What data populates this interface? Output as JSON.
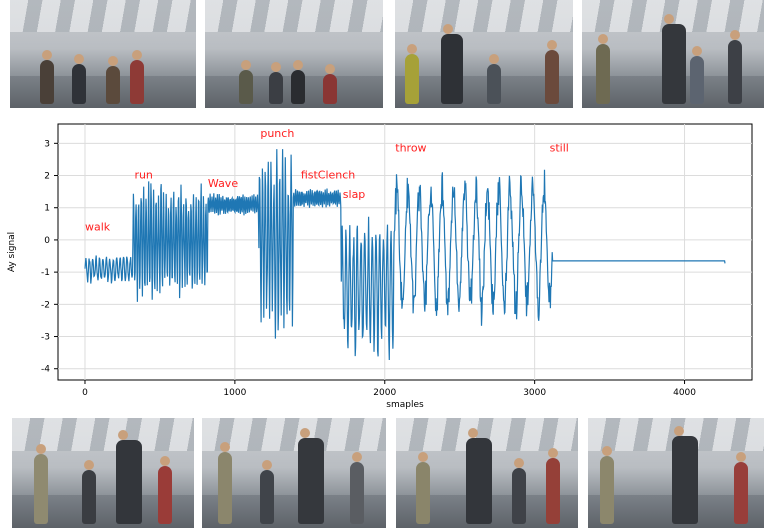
{
  "chart_data": {
    "type": "line",
    "xlabel": "smaples",
    "ylabel": "Ay signal",
    "xlim": [
      -180,
      4450
    ],
    "ylim": [
      -4.35,
      3.6
    ],
    "grid": true,
    "line_color": "#1f77b4",
    "annotation_color": "#ff2020",
    "xticks": [
      0,
      1000,
      2000,
      3000,
      4000
    ],
    "yticks": [
      -4,
      -3,
      -2,
      -1,
      0,
      1,
      2,
      3
    ],
    "annotations": [
      {
        "text": "walk",
        "x": 0,
        "y": 0.3
      },
      {
        "text": "run",
        "x": 330,
        "y": 1.9
      },
      {
        "text": "Wave",
        "x": 820,
        "y": 1.65
      },
      {
        "text": "punch",
        "x": 1170,
        "y": 3.2
      },
      {
        "text": "fistClench",
        "x": 1440,
        "y": 1.9
      },
      {
        "text": "slap",
        "x": 1720,
        "y": 1.3
      },
      {
        "text": "throw",
        "x": 2070,
        "y": 2.75
      },
      {
        "text": "still",
        "x": 3100,
        "y": 2.75
      }
    ],
    "segments": [
      {
        "name": "walk",
        "x_start": 0,
        "x_end": 320,
        "center": -0.9,
        "amplitude": 0.45,
        "cycles": 14
      },
      {
        "name": "run",
        "x_start": 320,
        "x_end": 820,
        "center": 0.0,
        "amplitude": 1.9,
        "cycles": 30
      },
      {
        "name": "Wave",
        "x_start": 820,
        "x_end": 1160,
        "center": 1.1,
        "amplitude": 0.35,
        "cycles": 28
      },
      {
        "name": "punch",
        "x_start": 1160,
        "x_end": 1390,
        "center": 0.0,
        "amplitude": 2.9,
        "cycles": 12
      },
      {
        "name": "fistClench",
        "x_start": 1390,
        "x_end": 1710,
        "center": 1.3,
        "amplitude": 0.3,
        "cycles": 26
      },
      {
        "name": "slap",
        "x_start": 1710,
        "x_end": 2060,
        "center": -1.4,
        "amplitude": 2.2,
        "cycles": 14
      },
      {
        "name": "throw",
        "x_start": 2060,
        "x_end": 3120,
        "center": -0.2,
        "amplitude": 2.3,
        "cycles": 14
      },
      {
        "name": "still",
        "x_start": 3120,
        "x_end": 4270,
        "center": -0.65,
        "amplitude": 0.0,
        "cycles": 0
      }
    ]
  }
}
